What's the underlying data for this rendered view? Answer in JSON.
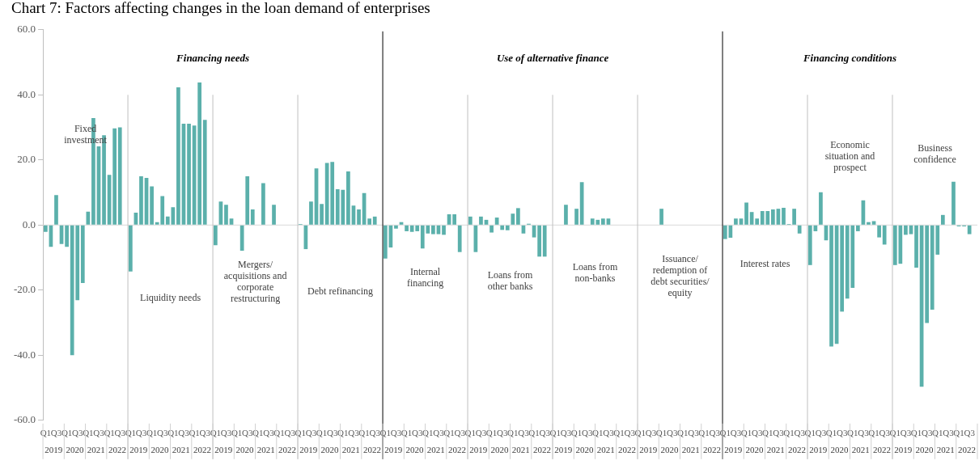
{
  "chart_data": {
    "type": "bar",
    "title": "Chart 7: Factors affecting changes in the loan demand of enterprises",
    "categories": [
      "Q1",
      null,
      "Q3",
      null,
      "Q1",
      null,
      "Q3",
      null,
      "Q1",
      null,
      "Q3",
      null,
      "Q1",
      null,
      "Q3",
      null,
      "Q1",
      null,
      "Q3",
      null,
      "Q1",
      null,
      "Q3",
      null,
      "Q1",
      null,
      "Q3",
      null,
      "Q1",
      null,
      "Q3",
      null,
      "Q1",
      null,
      "Q3",
      null,
      "Q1",
      null,
      "Q3",
      null,
      "Q1",
      null,
      "Q3",
      null,
      "Q1",
      null,
      "Q3",
      null,
      "Q1",
      null,
      "Q3",
      null,
      "Q1",
      null,
      "Q3",
      null,
      "Q1",
      null,
      "Q3",
      null,
      "Q1",
      null,
      "Q3",
      null,
      "Q1",
      null,
      "Q3",
      null,
      "Q1",
      null,
      "Q3",
      null,
      "Q1",
      null,
      "Q3",
      null,
      "Q1",
      null,
      "Q3",
      null,
      "Q1",
      null,
      "Q3",
      null,
      "Q1",
      null,
      "Q3",
      null,
      "Q1",
      null,
      "Q3",
      null,
      "Q1",
      null,
      "Q3",
      null,
      "Q1",
      null,
      "Q3",
      null,
      "Q1",
      null,
      "Q3",
      null,
      "Q1",
      null,
      "Q3",
      null,
      "Q1",
      null,
      "Q3",
      null,
      "Q1",
      null,
      "Q3",
      null,
      "Q1",
      null,
      "Q3",
      null,
      "Q1",
      null,
      "Q3",
      null,
      "Q1",
      null,
      "Q3",
      null,
      "Q1",
      null,
      "Q3",
      null,
      "Q1",
      null,
      "Q3",
      null,
      "Q1",
      null,
      "Q3",
      null,
      "Q1",
      null,
      "Q3",
      null,
      "Q1",
      null,
      "Q3",
      null,
      "Q1",
      null,
      "Q3",
      null,
      "Q1",
      null,
      "Q3",
      null,
      "Q1",
      null,
      "Q3",
      null,
      "Q1",
      null,
      "Q3",
      null,
      "Q1",
      null,
      "Q3",
      null,
      "Q1",
      null,
      "Q3",
      null,
      "Q1",
      null,
      "Q3",
      null
    ],
    "values": [
      -2.1,
      -6.7,
      9.2,
      -5.8,
      -6.7,
      -40.0,
      -23.1,
      -17.8,
      4.1,
      32.9,
      24.2,
      27.6,
      15.4,
      29.7,
      30.0,
      null,
      -14.3,
      3.8,
      15.0,
      14.5,
      11.9,
      0.9,
      8.9,
      2.6,
      5.5,
      42.3,
      31.1,
      31.1,
      30.6,
      43.8,
      32.3,
      null,
      -6.2,
      7.2,
      6.2,
      2.0,
      0,
      -7.9,
      15.0,
      4.8,
      0,
      12.9,
      0,
      6.2,
      0,
      0,
      0,
      null,
      0.3,
      -7.4,
      7.2,
      17.4,
      6.5,
      19.1,
      19.4,
      11.0,
      10.8,
      16.5,
      6.0,
      4.8,
      9.8,
      2.0,
      2.6,
      null,
      -10.3,
      -6.9,
      -1.1,
      0.9,
      -1.9,
      -2.1,
      -1.9,
      -7.2,
      -2.6,
      -2.8,
      -2.8,
      -3.0,
      3.3,
      3.3,
      -8.3,
      null,
      2.6,
      -8.3,
      2.6,
      1.6,
      -2.3,
      2.3,
      -1.5,
      -1.6,
      3.5,
      5.2,
      -2.6,
      0.4,
      -3.8,
      -9.7,
      -9.7,
      null,
      0,
      0,
      6.2,
      0,
      5.0,
      13.2,
      0,
      2.0,
      1.6,
      2.0,
      2.0,
      0,
      0,
      0,
      0,
      null,
      0,
      0,
      0,
      0,
      5.0,
      0,
      0,
      0,
      0,
      0,
      0,
      0,
      0,
      0,
      0,
      null,
      -4.3,
      -3.9,
      2.0,
      2.0,
      6.9,
      4.0,
      2.0,
      4.3,
      4.3,
      4.8,
      5.0,
      5.3,
      0.3,
      5.0,
      -2.6,
      null,
      -12.3,
      -1.9,
      10.1,
      -4.7,
      -37.3,
      -36.5,
      -26.6,
      -22.6,
      -19.3,
      -1.9,
      7.6,
      0.9,
      1.2,
      -3.8,
      -6.0,
      null,
      -12.3,
      -11.9,
      -3.0,
      -2.8,
      -13.1,
      -49.7,
      -30.1,
      -26.0,
      -9.1,
      3.1,
      0,
      13.3,
      -0.4,
      -0.4,
      -2.8,
      null
    ],
    "color": "#5bb0ab",
    "ylim": [
      -60,
      60
    ],
    "yticks": [
      {
        "value": -60,
        "label": "-60.0"
      },
      {
        "value": -40,
        "label": "-40.0"
      },
      {
        "value": -20,
        "label": "-20.0"
      },
      {
        "value": 0,
        "label": "0.0"
      },
      {
        "value": 20,
        "label": "20.0"
      },
      {
        "value": 40,
        "label": "40.0"
      },
      {
        "value": 60,
        "label": "60.0"
      }
    ],
    "grid": false,
    "legend": false,
    "ref_lines": [
      {
        "axis": "y",
        "value": 0,
        "color": "#d9d9d9"
      }
    ],
    "annotations": [
      "Financing needs",
      "Use of alternative finance",
      "Financing conditions",
      "Fixed investment",
      "Liquidity needs",
      "Mergers/acquisitions and corporate restructuring",
      "Debt refinancing",
      "Internal financing",
      "Loans from other banks",
      "Loans from non-banks",
      "Issuance/redemption of debt securities/equity",
      "Interest rates",
      "Economic situation and prospect",
      "Business confidence",
      "2019",
      "2020",
      "2021",
      "2022",
      "2019",
      "2020",
      "2021",
      "2022",
      "2019",
      "2020",
      "2021",
      "2022",
      "2019",
      "2020",
      "2021",
      "2022",
      "2019",
      "2020",
      "2021",
      "2022",
      "2019",
      "2020",
      "2021",
      "2022",
      "2019",
      "2020",
      "2021",
      "2022",
      "2019",
      "2020",
      "2021",
      "2022",
      "2019",
      "2020",
      "2021",
      "2022",
      "2019",
      "2020",
      "2021",
      "2022",
      "2019",
      "2020",
      "2021",
      "2022"
    ]
  }
}
